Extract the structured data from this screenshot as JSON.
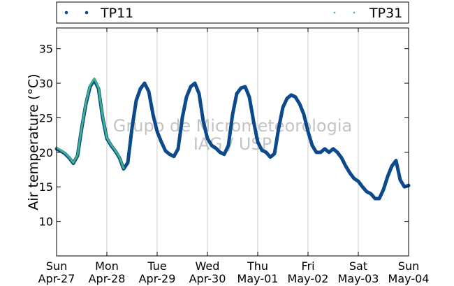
{
  "chart_data": {
    "type": "scatter",
    "ylabel": "Air temperature (°C)",
    "ylim": [
      5,
      38
    ],
    "yticks": [
      10,
      15,
      20,
      25,
      30,
      35
    ],
    "xlim": [
      "2025-04-27 00:00",
      "2025-05-04 00:00"
    ],
    "x_tick_labels": [
      [
        "Sun",
        "Apr-27"
      ],
      [
        "Mon",
        "Apr-28"
      ],
      [
        "Tue",
        "Apr-29"
      ],
      [
        "Wed",
        "Apr-30"
      ],
      [
        "Thu",
        "May-01"
      ],
      [
        "Fri",
        "May-02"
      ],
      [
        "Sat",
        "May-03"
      ],
      [
        "Sun",
        "May-04"
      ]
    ],
    "grid": "vertical",
    "legend": "top",
    "watermark": [
      "Grupo de Micrometeorologia",
      "IAG / USP"
    ],
    "series": [
      {
        "name": "TP11",
        "color": "#0d4a8c",
        "x": [
          "2025-04-27 00:00",
          "2025-04-27 02:00",
          "2025-04-27 04:00",
          "2025-04-27 06:00",
          "2025-04-27 08:00",
          "2025-04-27 10:00",
          "2025-04-27 12:00",
          "2025-04-27 14:00",
          "2025-04-27 16:00",
          "2025-04-27 18:00",
          "2025-04-27 20:00",
          "2025-04-27 22:00",
          "2025-04-28 00:00",
          "2025-04-28 02:00",
          "2025-04-28 04:00",
          "2025-04-28 06:00",
          "2025-04-28 08:00",
          "2025-04-28 10:00",
          "2025-04-28 12:00",
          "2025-04-28 14:00",
          "2025-04-28 16:00",
          "2025-04-28 18:00",
          "2025-04-28 20:00",
          "2025-04-28 22:00",
          "2025-04-29 00:00",
          "2025-04-29 02:00",
          "2025-04-29 04:00",
          "2025-04-29 06:00",
          "2025-04-29 08:00",
          "2025-04-29 10:00",
          "2025-04-29 12:00",
          "2025-04-29 14:00",
          "2025-04-29 16:00",
          "2025-04-29 18:00",
          "2025-04-29 20:00",
          "2025-04-29 22:00",
          "2025-04-30 00:00",
          "2025-04-30 02:00",
          "2025-04-30 04:00",
          "2025-04-30 06:00",
          "2025-04-30 08:00",
          "2025-04-30 10:00",
          "2025-04-30 12:00",
          "2025-04-30 14:00",
          "2025-04-30 16:00",
          "2025-04-30 18:00",
          "2025-04-30 20:00",
          "2025-04-30 22:00",
          "2025-05-01 00:00",
          "2025-05-01 02:00",
          "2025-05-01 04:00",
          "2025-05-01 06:00",
          "2025-05-01 08:00",
          "2025-05-01 10:00",
          "2025-05-01 12:00",
          "2025-05-01 14:00",
          "2025-05-01 16:00",
          "2025-05-01 18:00",
          "2025-05-01 20:00",
          "2025-05-01 22:00",
          "2025-05-02 00:00",
          "2025-05-02 02:00",
          "2025-05-02 04:00",
          "2025-05-02 06:00",
          "2025-05-02 08:00",
          "2025-05-02 10:00",
          "2025-05-02 12:00",
          "2025-05-02 14:00",
          "2025-05-02 16:00",
          "2025-05-02 18:00",
          "2025-05-02 20:00",
          "2025-05-02 22:00",
          "2025-05-03 00:00",
          "2025-05-03 02:00",
          "2025-05-03 04:00",
          "2025-05-03 06:00",
          "2025-05-03 08:00",
          "2025-05-03 10:00",
          "2025-05-03 12:00",
          "2025-05-03 14:00",
          "2025-05-03 16:00",
          "2025-05-03 18:00",
          "2025-05-03 20:00",
          "2025-05-03 22:00",
          "2025-05-04 00:00"
        ],
        "y": [
          20.5,
          20.2,
          19.8,
          19.2,
          18.4,
          19.5,
          23.5,
          27.0,
          29.5,
          30.5,
          29.2,
          25.0,
          22.0,
          21.0,
          20.2,
          19.2,
          17.6,
          18.5,
          23.5,
          27.5,
          29.2,
          30.0,
          28.8,
          25.5,
          23.0,
          21.5,
          20.2,
          19.7,
          19.4,
          20.5,
          25.0,
          28.0,
          29.5,
          30.0,
          28.5,
          24.5,
          22.0,
          21.0,
          20.6,
          20.0,
          19.7,
          21.0,
          25.5,
          28.5,
          29.3,
          29.5,
          28.0,
          24.5,
          21.5,
          20.3,
          20.0,
          19.3,
          19.8,
          23.5,
          26.5,
          27.8,
          28.3,
          28.0,
          27.0,
          25.5,
          23.0,
          21.0,
          20.0,
          20.0,
          20.5,
          20.0,
          20.5,
          20.0,
          19.2,
          18.0,
          17.0,
          16.2,
          15.8,
          15.0,
          14.3,
          14.0,
          13.3,
          13.3,
          14.6,
          16.5,
          18.0,
          18.8,
          16.0,
          15.0,
          15.2
        ]
      },
      {
        "name": "TP31",
        "color": "#3fb58a",
        "x": [
          "2025-04-27 00:00",
          "2025-04-27 02:00",
          "2025-04-27 04:00",
          "2025-04-27 06:00",
          "2025-04-27 08:00",
          "2025-04-27 10:00",
          "2025-04-27 12:00",
          "2025-04-27 14:00",
          "2025-04-27 16:00",
          "2025-04-27 18:00",
          "2025-04-27 20:00",
          "2025-04-27 22:00",
          "2025-04-28 00:00",
          "2025-04-28 02:00",
          "2025-04-28 04:00",
          "2025-04-28 06:00",
          "2025-04-28 08:00"
        ],
        "y": [
          20.7,
          20.3,
          19.9,
          19.3,
          18.5,
          19.6,
          23.6,
          27.2,
          29.7,
          30.7,
          29.4,
          25.2,
          22.1,
          21.1,
          20.3,
          19.3,
          17.7
        ]
      }
    ]
  }
}
